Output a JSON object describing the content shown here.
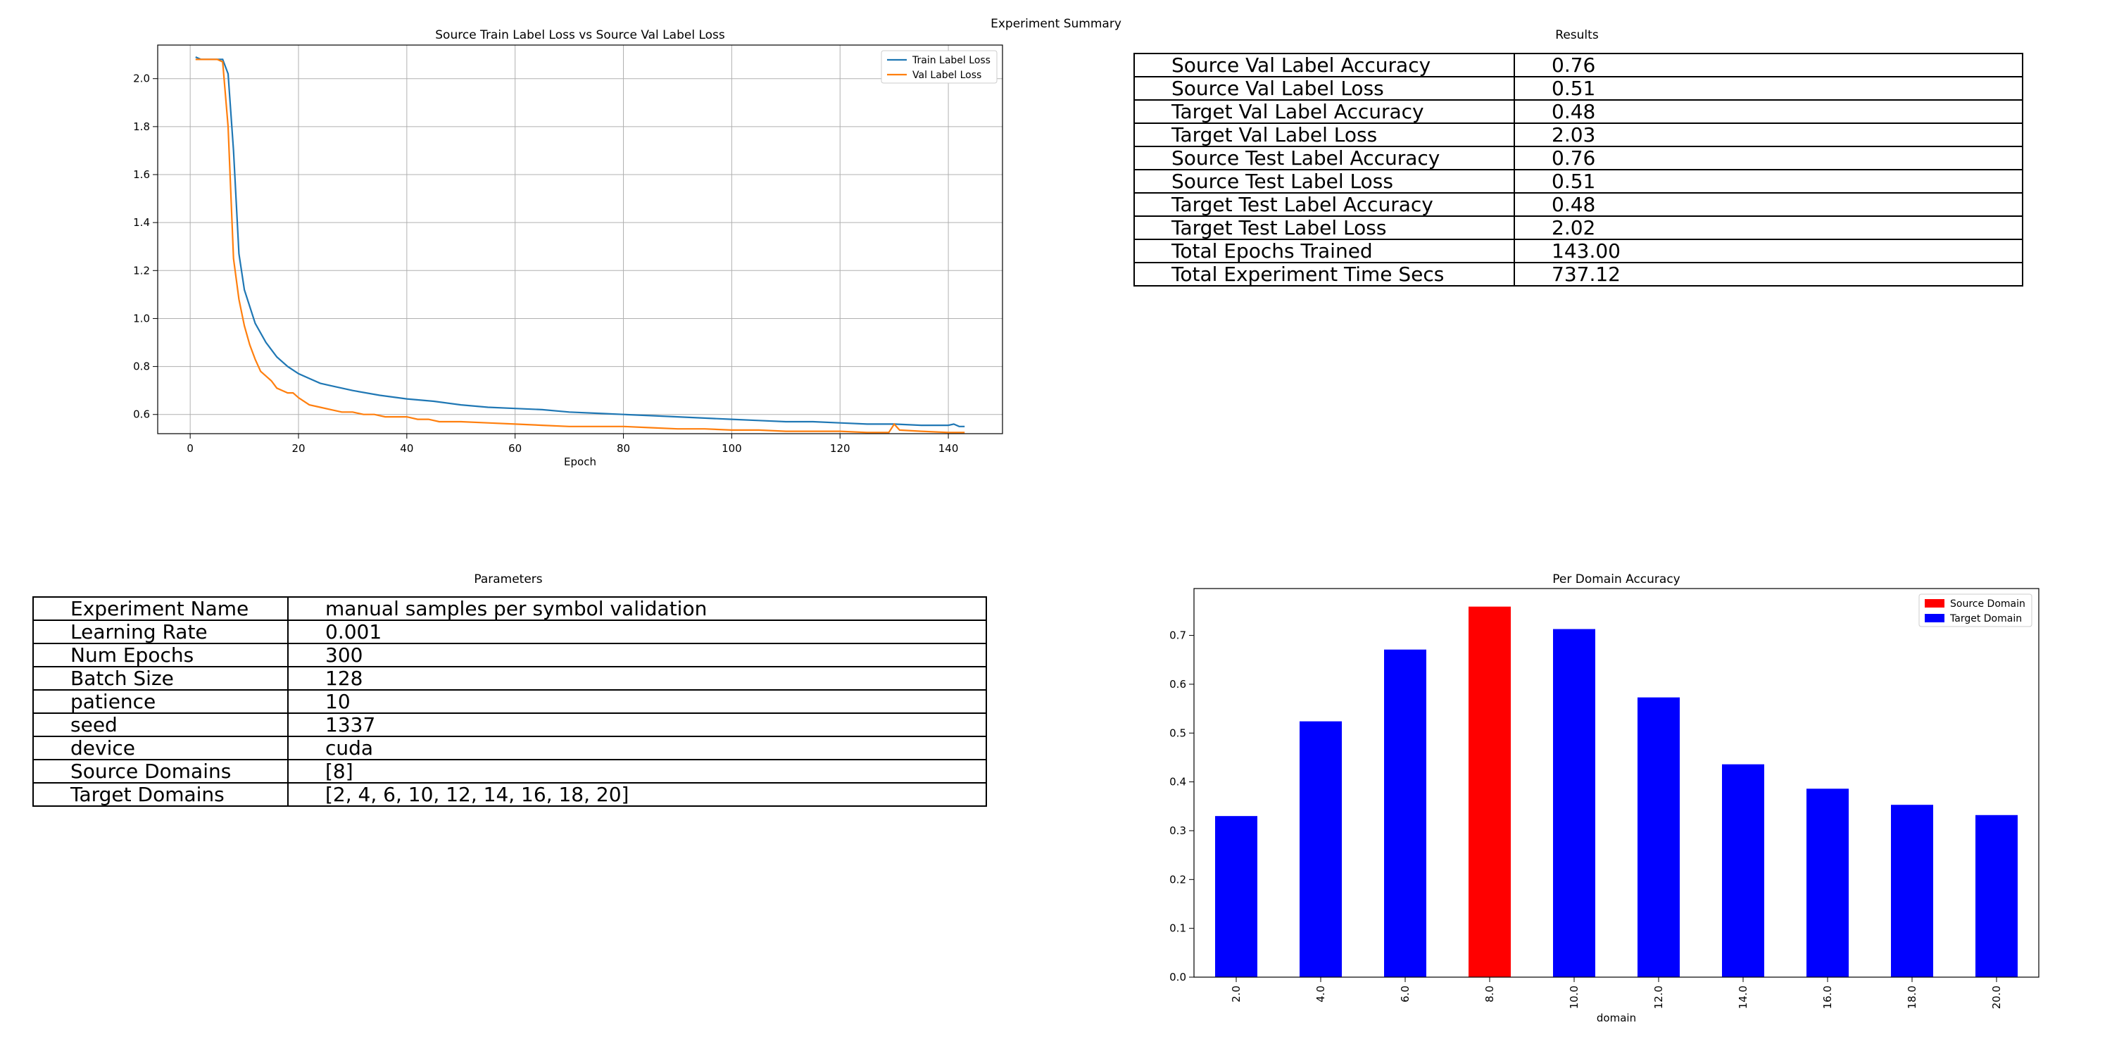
{
  "page_title": "Experiment Summary",
  "charts": [
    {
      "type": "line",
      "title": "Source Train Label Loss vs Source Val Label Loss",
      "xlabel": "Epoch",
      "ylabel": "",
      "xlim": [
        -6,
        150
      ],
      "ylim": [
        0.52,
        2.14
      ],
      "xticks": [
        0,
        20,
        40,
        60,
        80,
        100,
        120,
        140
      ],
      "yticks": [
        0.6,
        0.8,
        1.0,
        1.2,
        1.4,
        1.6,
        1.8,
        2.0
      ],
      "grid": true,
      "legend": "top-right",
      "series": [
        {
          "name": "Train Label Loss",
          "color": "#1f77b4",
          "x": [
            1,
            2,
            3,
            4,
            5,
            6,
            7,
            8,
            9,
            10,
            12,
            14,
            16,
            18,
            20,
            22,
            24,
            26,
            28,
            30,
            35,
            40,
            45,
            50,
            55,
            60,
            65,
            70,
            75,
            80,
            85,
            90,
            95,
            100,
            105,
            110,
            115,
            120,
            125,
            130,
            135,
            140,
            141,
            142,
            143
          ],
          "y": [
            2.09,
            2.08,
            2.08,
            2.08,
            2.08,
            2.08,
            2.02,
            1.7,
            1.27,
            1.12,
            0.98,
            0.9,
            0.84,
            0.8,
            0.77,
            0.75,
            0.73,
            0.72,
            0.71,
            0.7,
            0.68,
            0.665,
            0.655,
            0.64,
            0.63,
            0.625,
            0.62,
            0.61,
            0.605,
            0.6,
            0.595,
            0.59,
            0.585,
            0.58,
            0.575,
            0.57,
            0.57,
            0.565,
            0.56,
            0.56,
            0.555,
            0.555,
            0.56,
            0.55,
            0.55
          ]
        },
        {
          "name": "Val Label Loss",
          "color": "#ff7f0e",
          "x": [
            1,
            2,
            3,
            4,
            5,
            6,
            7,
            8,
            9,
            10,
            11,
            12,
            13,
            14,
            15,
            16,
            17,
            18,
            19,
            20,
            22,
            24,
            26,
            28,
            30,
            32,
            34,
            36,
            38,
            40,
            42,
            44,
            46,
            48,
            50,
            55,
            60,
            65,
            70,
            75,
            80,
            85,
            90,
            95,
            100,
            105,
            110,
            115,
            120,
            125,
            129,
            130,
            131,
            135,
            140,
            143
          ],
          "y": [
            2.08,
            2.08,
            2.08,
            2.08,
            2.08,
            2.07,
            1.8,
            1.25,
            1.08,
            0.97,
            0.89,
            0.83,
            0.78,
            0.76,
            0.74,
            0.71,
            0.7,
            0.69,
            0.69,
            0.67,
            0.64,
            0.63,
            0.62,
            0.61,
            0.61,
            0.6,
            0.6,
            0.59,
            0.59,
            0.59,
            0.58,
            0.58,
            0.57,
            0.57,
            0.57,
            0.565,
            0.56,
            0.555,
            0.55,
            0.55,
            0.55,
            0.545,
            0.54,
            0.54,
            0.535,
            0.535,
            0.53,
            0.53,
            0.53,
            0.525,
            0.525,
            0.56,
            0.535,
            0.53,
            0.525,
            0.525
          ]
        }
      ]
    },
    {
      "type": "bar",
      "title": "Per Domain Accuracy",
      "xlabel": "domain",
      "ylabel": "",
      "categories": [
        "2.0",
        "4.0",
        "6.0",
        "8.0",
        "10.0",
        "12.0",
        "14.0",
        "16.0",
        "18.0",
        "20.0"
      ],
      "values": [
        0.33,
        0.524,
        0.671,
        0.759,
        0.713,
        0.573,
        0.436,
        0.386,
        0.353,
        0.332
      ],
      "bar_colors": [
        "#0000ff",
        "#0000ff",
        "#0000ff",
        "#ff0000",
        "#0000ff",
        "#0000ff",
        "#0000ff",
        "#0000ff",
        "#0000ff",
        "#0000ff"
      ],
      "ylim": [
        0,
        0.796
      ],
      "yticks": [
        0.0,
        0.1,
        0.2,
        0.3,
        0.4,
        0.5,
        0.6,
        0.7
      ],
      "legend": "top-right",
      "legend_entries": [
        {
          "name": "Source Domain",
          "color": "#ff0000"
        },
        {
          "name": "Target Domain",
          "color": "#0000ff"
        }
      ]
    }
  ],
  "results": {
    "title": "Results",
    "rows": [
      [
        "Source Val Label Accuracy",
        "0.76"
      ],
      [
        "Source Val Label Loss",
        "0.51"
      ],
      [
        "Target Val Label Accuracy",
        "0.48"
      ],
      [
        "Target Val Label Loss",
        "2.03"
      ],
      [
        "Source Test Label Accuracy",
        "0.76"
      ],
      [
        "Source Test Label Loss",
        "0.51"
      ],
      [
        "Target Test Label Accuracy",
        "0.48"
      ],
      [
        "Target Test Label Loss",
        "2.02"
      ],
      [
        "Total Epochs Trained",
        "143.00"
      ],
      [
        "Total Experiment Time Secs",
        "737.12"
      ]
    ]
  },
  "parameters": {
    "title": "Parameters",
    "rows": [
      [
        "Experiment Name",
        "manual samples per symbol validation"
      ],
      [
        "Learning Rate",
        "0.001"
      ],
      [
        "Num Epochs",
        "300"
      ],
      [
        "Batch Size",
        "128"
      ],
      [
        "patience",
        "10"
      ],
      [
        "seed",
        "1337"
      ],
      [
        "device",
        "cuda"
      ],
      [
        "Source Domains",
        "[8]"
      ],
      [
        "Target Domains",
        "[2, 4, 6, 10, 12, 14, 16, 18, 20]"
      ]
    ]
  }
}
